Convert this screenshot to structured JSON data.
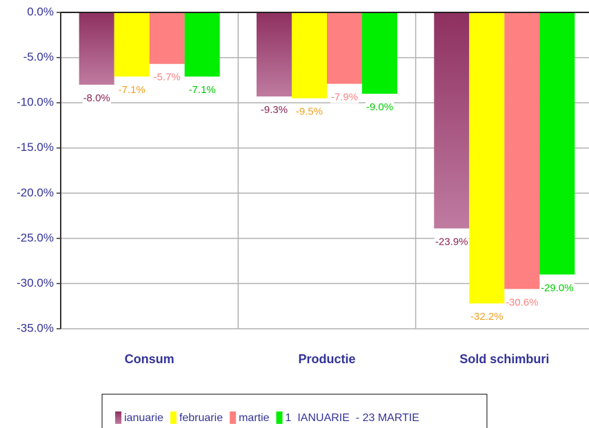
{
  "chart_data": {
    "type": "bar",
    "categories": [
      "Consum",
      "Productie",
      "Sold schimburi"
    ],
    "series": [
      {
        "name": "ianuarie",
        "color": "#8e3060",
        "values": [
          -8.0,
          -9.3,
          -23.9
        ],
        "value_labels": [
          "-8.0%",
          "-9.3%",
          "-23.9%"
        ]
      },
      {
        "name": "februarie",
        "color": "#ffff00",
        "values": [
          -7.1,
          -9.5,
          -32.2
        ],
        "value_labels": [
          "-7.1%",
          "-9.5%",
          "-32.2%"
        ]
      },
      {
        "name": "martie",
        "color": "#ff8080",
        "values": [
          -5.7,
          -7.9,
          -30.6
        ],
        "value_labels": [
          "-5.7%",
          "-7.9%",
          "-30.6%"
        ]
      },
      {
        "name": "1  IANUARIE  - 23 MARTIE",
        "color": "#00ee00",
        "values": [
          -7.1,
          -9.0,
          -29.0
        ],
        "value_labels": [
          "-7.1%",
          "-9.0%",
          "-29.0%"
        ]
      }
    ],
    "ylim": [
      -35,
      0
    ],
    "yticks": [
      {
        "value": 0,
        "label": "0.0%"
      },
      {
        "value": -5,
        "label": "-5.0%"
      },
      {
        "value": -10,
        "label": "-10.0%"
      },
      {
        "value": -15,
        "label": "-15.0%"
      },
      {
        "value": -20,
        "label": "-20.0%"
      },
      {
        "value": -25,
        "label": "-25.0%"
      },
      {
        "value": -30,
        "label": "-30.0%"
      },
      {
        "value": -35,
        "label": "-35.0%"
      }
    ],
    "grid": true
  }
}
